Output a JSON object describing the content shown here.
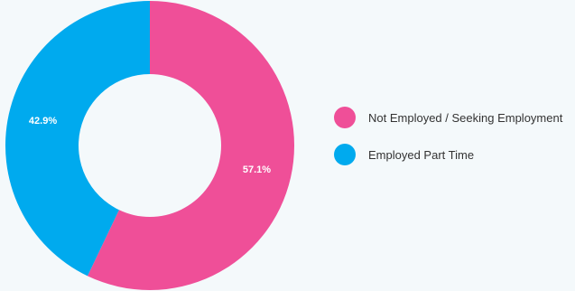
{
  "chart_data": {
    "type": "pie",
    "donut": true,
    "title": "",
    "legend_position": "right",
    "slices": [
      {
        "label": "Not Employed / Seeking Employment",
        "value": 57.1,
        "value_label": "57.1%",
        "color": "#ef4f98"
      },
      {
        "label": "Employed Part Time",
        "value": 42.9,
        "value_label": "42.9%",
        "color": "#00aaee"
      }
    ]
  }
}
